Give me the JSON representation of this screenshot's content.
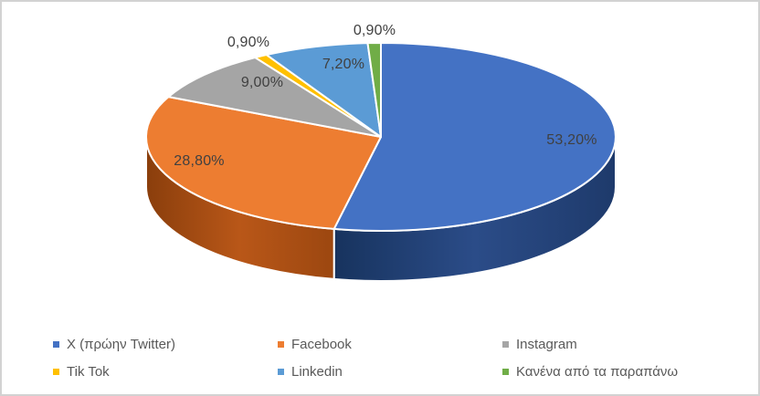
{
  "chart_data": {
    "type": "pie",
    "style": "3d",
    "title": "",
    "unit": "%",
    "decimal_separator": ",",
    "start_angle_deg": 0,
    "direction": "clockwise",
    "legend_position": "bottom",
    "legend_rows": 2,
    "legend_columns": 3,
    "slices": [
      {
        "slug": "x-former-twitter",
        "label": "X (πρώην Twitter)",
        "value": 53.2,
        "label_text": "53,20%",
        "color": "#4472C4",
        "side_gradient": [
          "#17335e",
          "#2b4c88",
          "#1e3a6b"
        ],
        "label_pos": [
          624,
          152
        ]
      },
      {
        "slug": "facebook",
        "label": "Facebook",
        "value": 28.8,
        "label_text": "28,80%",
        "color": "#ED7D31",
        "side_gradient": [
          "#8a3e0c",
          "#b95718",
          "#9c4710"
        ],
        "label_pos": [
          216,
          175
        ]
      },
      {
        "slug": "instagram",
        "label": "Instagram",
        "value": 9.0,
        "label_text": "9,00%",
        "color": "#A5A5A5",
        "side_gradient": null,
        "label_pos": [
          285,
          89
        ]
      },
      {
        "slug": "tik-tok",
        "label": "Tik Tok",
        "value": 0.9,
        "label_text": "0,90%",
        "color": "#FFC000",
        "side_gradient": null,
        "label_pos": [
          270,
          45
        ]
      },
      {
        "slug": "linkedin",
        "label": "Linkedin",
        "value": 7.2,
        "label_text": "7,20%",
        "color": "#5B9BD5",
        "side_gradient": null,
        "label_pos": [
          374,
          69
        ]
      },
      {
        "slug": "none-of-the-above",
        "label": "Κανένα από τα παραπάνω",
        "value": 0.9,
        "label_text": "0,90%",
        "color": "#70AD47",
        "side_gradient": null,
        "label_pos": [
          408,
          32
        ]
      }
    ]
  },
  "styles": {
    "data_label_color": "#404040",
    "legend_text_color": "#595959",
    "slice_stroke": "#ffffff",
    "frame_border": "#d2d2d2",
    "background": "#ffffff"
  }
}
